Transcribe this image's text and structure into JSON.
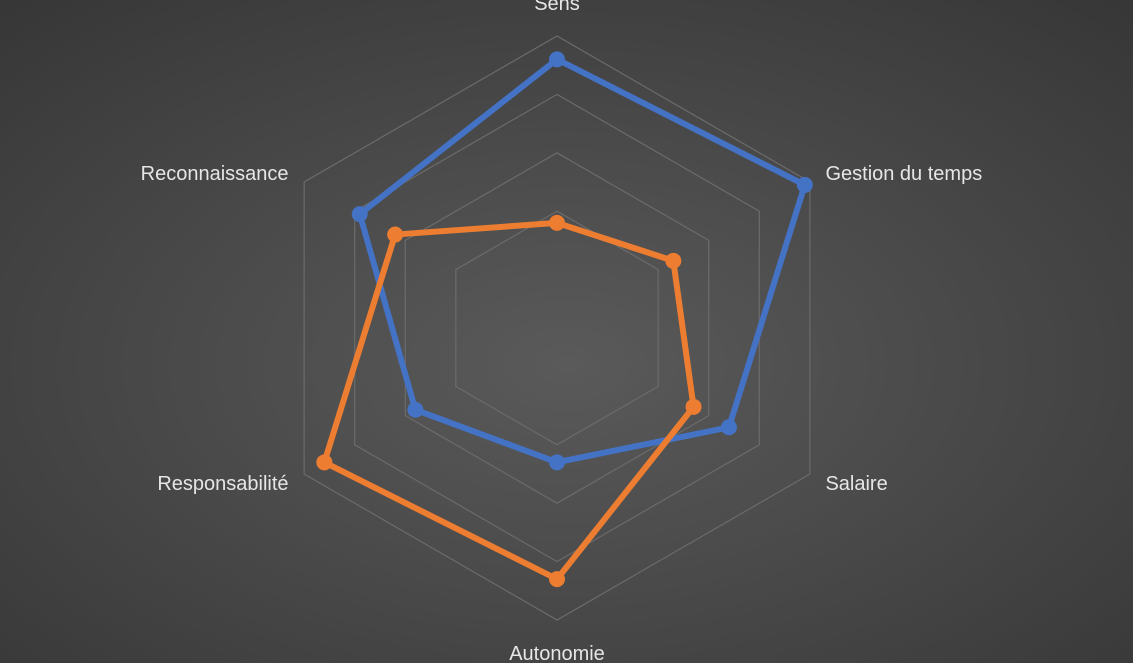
{
  "chart_data": {
    "type": "radar",
    "categories": [
      "Sens",
      "Gestion du temps",
      "Salaire",
      "Autonomie",
      "Responsabilité",
      "Reconnaissance"
    ],
    "rmax": 5,
    "grid_levels": 4,
    "grid": true,
    "legend": "none",
    "series": [
      {
        "values": [
          4.6,
          4.9,
          3.4,
          2.3,
          2.8,
          3.9
        ],
        "color": "#4472c4"
      },
      {
        "values": [
          1.8,
          2.3,
          2.7,
          4.3,
          4.6,
          3.2
        ],
        "color": "#ed7d31"
      }
    ]
  }
}
